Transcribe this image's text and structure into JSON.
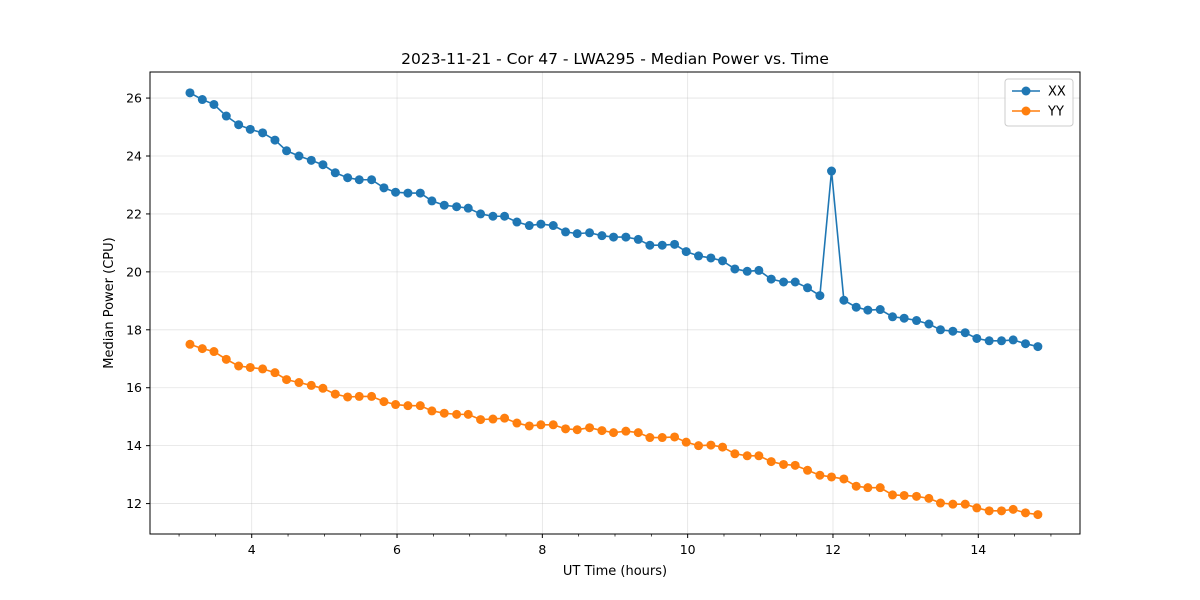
{
  "chart_data": {
    "type": "line",
    "title": "2023-11-21 - Cor 47 - LWA295 - Median Power vs. Time",
    "xlabel": "UT Time (hours)",
    "ylabel": "Median Power (CPU)",
    "xlim": [
      2.6,
      15.4
    ],
    "ylim": [
      10.95,
      26.9
    ],
    "xticks": [
      4,
      6,
      8,
      10,
      12,
      14
    ],
    "xtick_labels": [
      "4",
      "6",
      "8",
      "10",
      "12",
      "14"
    ],
    "yticks": [
      12,
      14,
      16,
      18,
      20,
      22,
      24,
      26
    ],
    "ytick_labels": [
      "12",
      "14",
      "16",
      "18",
      "20",
      "22",
      "24",
      "26"
    ],
    "grid": true,
    "legend_position": "top-right",
    "x": [
      3.15,
      3.32,
      3.48,
      3.65,
      3.82,
      3.98,
      4.15,
      4.32,
      4.48,
      4.65,
      4.82,
      4.98,
      5.15,
      5.32,
      5.48,
      5.65,
      5.82,
      5.98,
      6.15,
      6.32,
      6.48,
      6.65,
      6.82,
      6.98,
      7.15,
      7.32,
      7.48,
      7.65,
      7.82,
      7.98,
      8.15,
      8.32,
      8.48,
      8.65,
      8.82,
      8.98,
      9.15,
      9.32,
      9.48,
      9.65,
      9.82,
      9.98,
      10.15,
      10.32,
      10.48,
      10.65,
      10.82,
      10.98,
      11.15,
      11.32,
      11.48,
      11.65,
      11.82,
      11.98,
      12.15,
      12.32,
      12.48,
      12.65,
      12.82,
      12.98,
      13.15,
      13.32,
      13.48,
      13.65,
      13.82,
      13.98,
      14.15,
      14.32,
      14.48,
      14.65,
      14.82
    ],
    "series": [
      {
        "name": "XX",
        "color": "#1f77b4",
        "values": [
          26.18,
          25.95,
          25.78,
          25.38,
          25.08,
          24.92,
          24.8,
          24.55,
          24.18,
          24.0,
          23.85,
          23.7,
          23.42,
          23.25,
          23.18,
          23.18,
          22.9,
          22.75,
          22.72,
          22.72,
          22.45,
          22.3,
          22.25,
          22.2,
          22.0,
          21.92,
          21.92,
          21.72,
          21.6,
          21.65,
          21.6,
          21.38,
          21.32,
          21.35,
          21.25,
          21.2,
          21.2,
          21.12,
          20.92,
          20.92,
          20.95,
          20.7,
          20.55,
          20.48,
          20.38,
          20.1,
          20.02,
          20.05,
          19.75,
          19.65,
          19.65,
          19.45,
          19.18,
          23.48,
          19.02,
          18.78,
          18.68,
          18.7,
          18.45,
          18.4,
          18.32,
          18.2,
          18.0,
          17.95,
          17.9,
          17.7,
          17.62,
          17.62,
          17.65,
          17.52,
          17.42
        ]
      },
      {
        "name": "YY",
        "color": "#ff7f0e",
        "values": [
          17.5,
          17.35,
          17.25,
          16.98,
          16.75,
          16.7,
          16.65,
          16.52,
          16.28,
          16.18,
          16.08,
          15.98,
          15.78,
          15.68,
          15.7,
          15.7,
          15.52,
          15.42,
          15.38,
          15.38,
          15.2,
          15.12,
          15.08,
          15.08,
          14.9,
          14.92,
          14.95,
          14.78,
          14.68,
          14.72,
          14.72,
          14.58,
          14.55,
          14.62,
          14.52,
          14.45,
          14.5,
          14.45,
          14.28,
          14.28,
          14.3,
          14.12,
          14.0,
          14.02,
          13.95,
          13.72,
          13.65,
          13.65,
          13.45,
          13.35,
          13.32,
          13.15,
          12.98,
          12.92,
          12.85,
          12.6,
          12.55,
          12.55,
          12.3,
          12.28,
          12.25,
          12.18,
          12.02,
          11.98,
          11.98,
          11.85,
          11.75,
          11.75,
          11.8,
          11.68,
          11.62
        ]
      }
    ]
  }
}
